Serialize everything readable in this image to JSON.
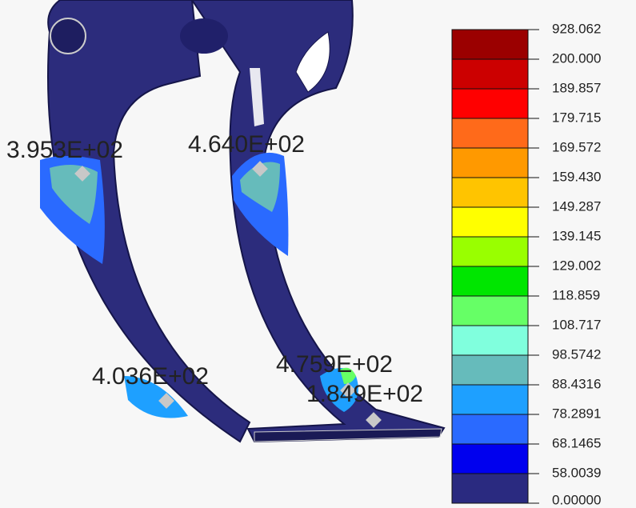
{
  "legend": {
    "labels": [
      "928.062",
      "200.000",
      "189.857",
      "179.715",
      "169.572",
      "159.430",
      "149.287",
      "139.145",
      "129.002",
      "118.859",
      "108.717",
      "98.5742",
      "88.4316",
      "78.2891",
      "68.1465",
      "58.0039",
      "0.00000"
    ],
    "colors": [
      "#9b0000",
      "#cc0000",
      "#ff0000",
      "#ff6a1a",
      "#ff9900",
      "#ffc400",
      "#ffff00",
      "#99ff00",
      "#00e600",
      "#66ff66",
      "#80ffdd",
      "#66bbbb",
      "#1ea0ff",
      "#2a6aff",
      "#0000ee",
      "#2a2a80"
    ]
  },
  "annotations": [
    "3.953E+02",
    "4.640E+02",
    "4.036E+02",
    "4.759E+02",
    "1.849E+02"
  ]
}
